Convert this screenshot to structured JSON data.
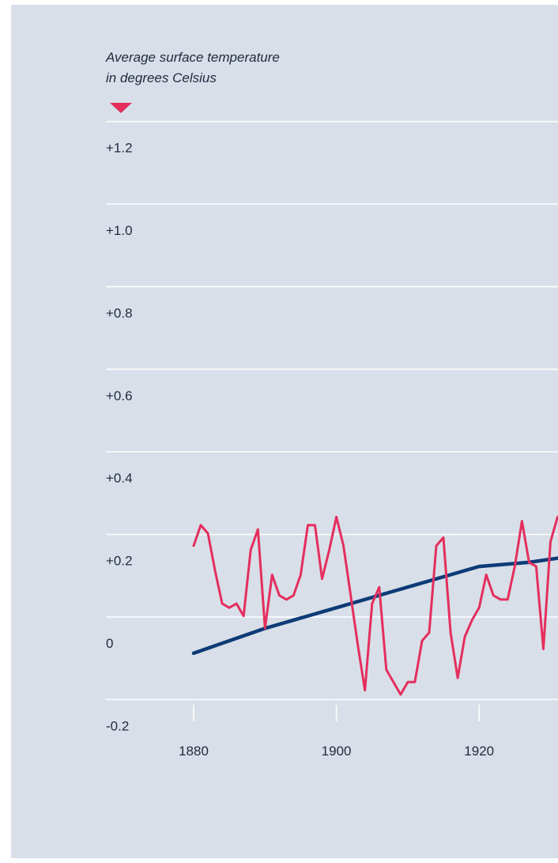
{
  "chart_data": {
    "type": "line",
    "ylabel": "Average surface temperature\nin degrees Celsius",
    "ylabel_lines": [
      "Average surface temperature",
      "in degrees Celsius"
    ],
    "ylim": [
      -0.2,
      1.25
    ],
    "y_ticks": [
      {
        "value": 1.2,
        "label": "+1.2"
      },
      {
        "value": 1.0,
        "label": "+1.0"
      },
      {
        "value": 0.8,
        "label": "+0.8"
      },
      {
        "value": 0.6,
        "label": "+0.6"
      },
      {
        "value": 0.4,
        "label": "+0.4"
      },
      {
        "value": 0.2,
        "label": "+0.2"
      },
      {
        "value": 0.0,
        "label": "0"
      },
      {
        "value": -0.2,
        "label": "-0.2"
      }
    ],
    "x_ticks": [
      {
        "value": 1880,
        "label": "1880"
      },
      {
        "value": 1900,
        "label": "1900"
      },
      {
        "value": 1920,
        "label": "1920"
      }
    ],
    "xlim": [
      1880,
      1931
    ],
    "grid": true,
    "colors": {
      "annual": "#e42f5e",
      "trend": "#0d3b78",
      "grid": "#ffffff",
      "background": "#d9dfe8",
      "text": "#1f2a3c"
    },
    "series": [
      {
        "values_kind": "annual",
        "x": [
          1880,
          1881,
          1882,
          1883,
          1884,
          1885,
          1886,
          1887,
          1888,
          1889,
          1890,
          1891,
          1892,
          1893,
          1894,
          1895,
          1896,
          1897,
          1898,
          1899,
          1900,
          1901,
          1902,
          1903,
          1904,
          1905,
          1906,
          1907,
          1908,
          1909,
          1910,
          1911,
          1912,
          1913,
          1914,
          1915,
          1916,
          1917,
          1918,
          1919,
          1920,
          1921,
          1922,
          1923,
          1924,
          1925,
          1926,
          1927,
          1928,
          1929,
          1930,
          1931
        ],
        "values": [
          0.18,
          0.23,
          0.21,
          0.12,
          0.04,
          0.03,
          0.04,
          0.01,
          0.17,
          0.22,
          -0.02,
          0.11,
          0.06,
          0.05,
          0.06,
          0.11,
          0.23,
          0.23,
          0.1,
          0.17,
          0.25,
          0.18,
          0.06,
          -0.06,
          -0.17,
          0.04,
          0.08,
          -0.12,
          -0.15,
          -0.18,
          -0.15,
          -0.15,
          -0.05,
          -0.03,
          0.18,
          0.2,
          -0.03,
          -0.14,
          -0.04,
          0.0,
          0.03,
          0.11,
          0.06,
          0.05,
          0.05,
          0.13,
          0.24,
          0.14,
          0.13,
          -0.07,
          0.19,
          0.25
        ]
      },
      {
        "values_kind": "trend",
        "x": [
          1880,
          1890,
          1900,
          1910,
          1920,
          1927,
          1931
        ],
        "values": [
          -0.08,
          -0.02,
          0.03,
          0.08,
          0.13,
          0.14,
          0.15
        ]
      }
    ]
  }
}
